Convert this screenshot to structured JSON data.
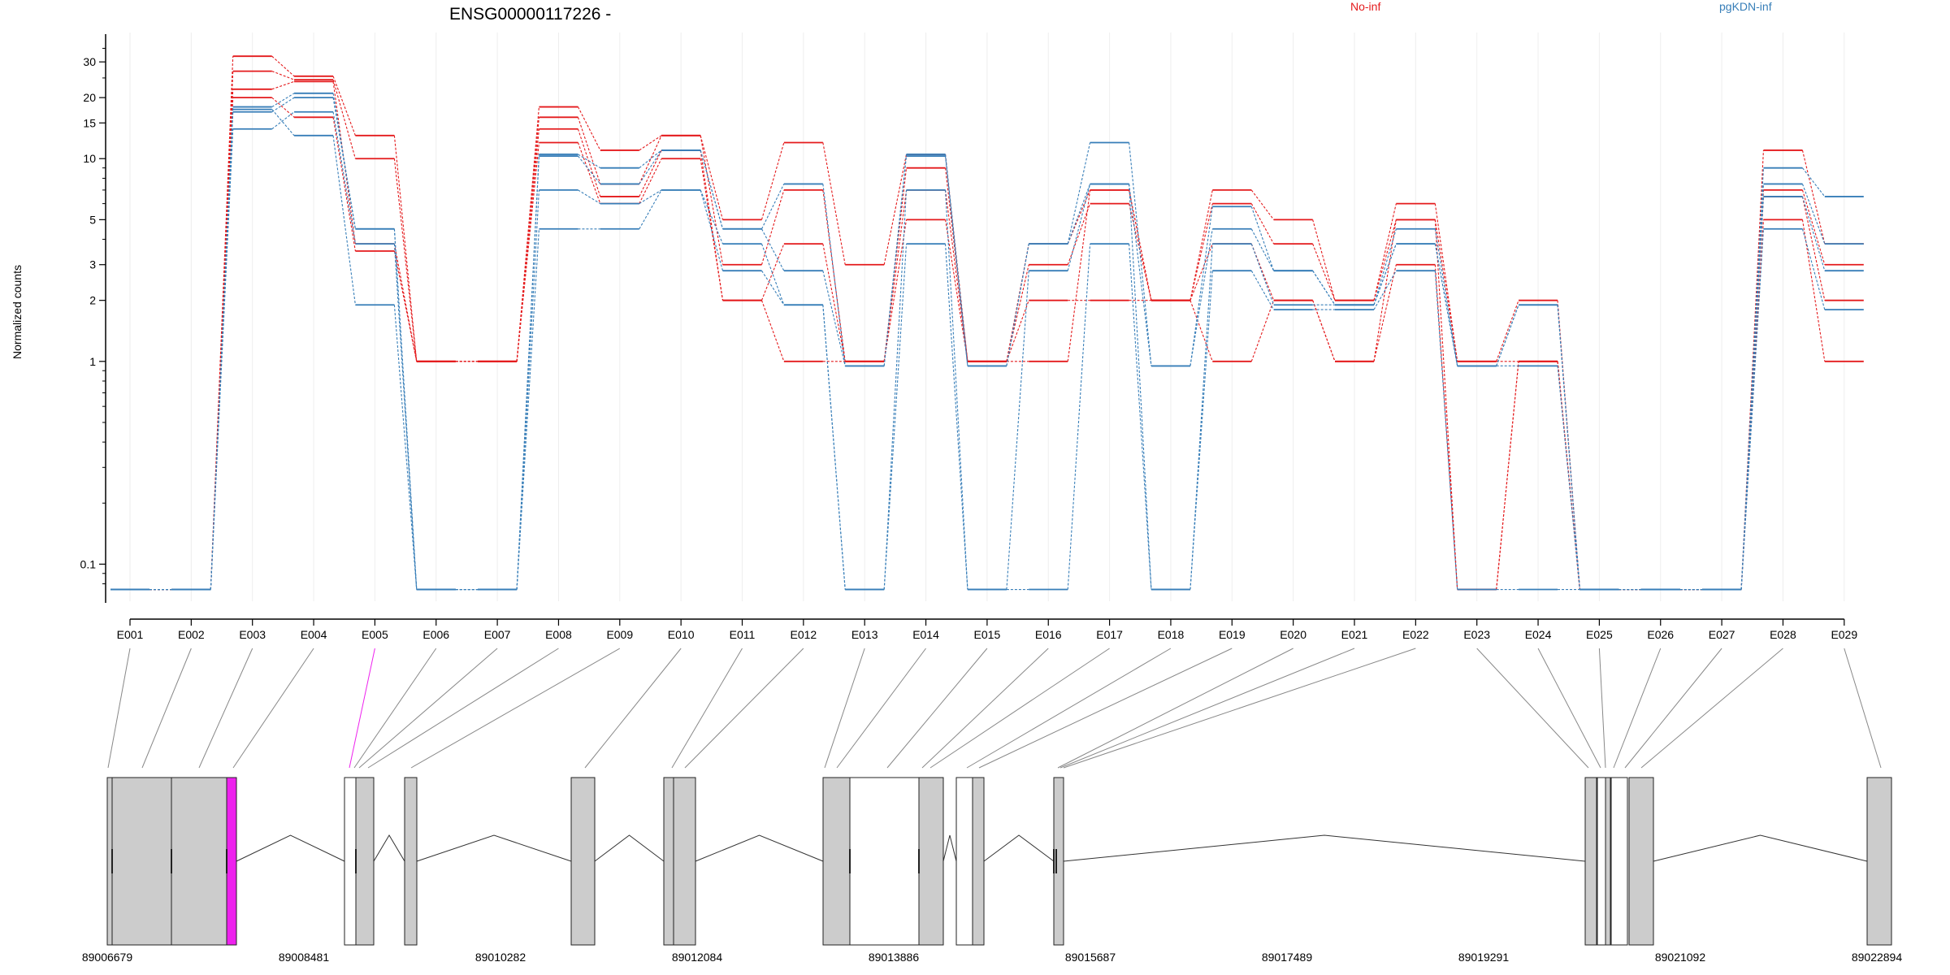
{
  "chart_data": {
    "type": "line",
    "title": "ENSG00000117226 -",
    "ylabel": "Normalized counts",
    "yscale": "log",
    "ylim": [
      0.07,
      40
    ],
    "y_ticks": [
      {
        "value": 0.1,
        "label": "0.1"
      },
      {
        "value": 1,
        "label": "1"
      },
      {
        "value": 2,
        "label": "2"
      },
      {
        "value": 3,
        "label": "3"
      },
      {
        "value": 5,
        "label": "5"
      },
      {
        "value": 10,
        "label": "10"
      },
      {
        "value": 15,
        "label": "15"
      },
      {
        "value": 20,
        "label": "20"
      },
      {
        "value": 30,
        "label": "30"
      }
    ],
    "categories": [
      "E001",
      "E002",
      "E003",
      "E004",
      "E005",
      "E006",
      "E007",
      "E008",
      "E009",
      "E010",
      "E011",
      "E012",
      "E013",
      "E014",
      "E015",
      "E016",
      "E017",
      "E018",
      "E019",
      "E020",
      "E021",
      "E022",
      "E023",
      "E024",
      "E025",
      "E026",
      "E027",
      "E028",
      "E029"
    ],
    "legend": [
      {
        "label": "No-inf",
        "color": "#e41a1c"
      },
      {
        "label": "pgKDN-inf",
        "color": "#377eb8"
      }
    ],
    "series": [
      {
        "group": "No-inf",
        "color": "#e41a1c",
        "values": [
          0.075,
          0.075,
          32,
          25.5,
          13,
          1,
          1,
          18,
          11,
          13,
          5,
          12,
          3,
          10.5,
          1,
          3.8,
          7,
          2,
          7,
          5,
          2,
          6,
          1,
          2,
          0.075,
          0.075,
          0.075,
          11,
          3.8
        ]
      },
      {
        "group": "No-inf",
        "color": "#e41a1c",
        "values": [
          0.075,
          0.075,
          27,
          24.5,
          10,
          1,
          1,
          16,
          7.5,
          13,
          3,
          7,
          1,
          9,
          1,
          3,
          6,
          2,
          6,
          3.8,
          2,
          5,
          1,
          1,
          0.075,
          0.075,
          0.075,
          7,
          3
        ]
      },
      {
        "group": "No-inf",
        "color": "#e41a1c",
        "values": [
          0.075,
          0.075,
          22,
          24,
          3.8,
          1,
          1,
          14,
          6.5,
          11,
          2,
          3.8,
          1,
          7,
          1,
          2,
          2,
          2,
          3.8,
          2,
          1,
          3,
          0.075,
          1,
          0.075,
          0.075,
          0.075,
          6.5,
          2
        ]
      },
      {
        "group": "No-inf",
        "color": "#e41a1c",
        "values": [
          0.075,
          0.075,
          20,
          16,
          3.5,
          1,
          1,
          12,
          6,
          10,
          2,
          1,
          1,
          5,
          1,
          1,
          7,
          2,
          1,
          2,
          1,
          5,
          0.075,
          1,
          0.075,
          0.075,
          0.075,
          5,
          1
        ]
      },
      {
        "group": "pgKDN-inf",
        "color": "#377eb8",
        "values": [
          0.075,
          0.075,
          18,
          21,
          4.5,
          0.075,
          0.075,
          10.5,
          9,
          11,
          4.5,
          7.5,
          0.95,
          10.5,
          0.95,
          3.8,
          12,
          0.95,
          5.8,
          2.8,
          1.9,
          4.5,
          0.95,
          1.9,
          0.075,
          0.075,
          0.075,
          9,
          6.5
        ]
      },
      {
        "group": "pgKDN-inf",
        "color": "#377eb8",
        "values": [
          0.075,
          0.075,
          17,
          20,
          4.5,
          0.075,
          0.075,
          10.3,
          7.5,
          11,
          4.5,
          2.8,
          0.95,
          10.3,
          0.95,
          3.8,
          7.5,
          0.95,
          4.5,
          2.8,
          1.9,
          3.8,
          0.95,
          1.9,
          0.075,
          0.075,
          0.075,
          7.5,
          3.8
        ]
      },
      {
        "group": "pgKDN-inf",
        "color": "#377eb8",
        "values": [
          0.075,
          0.075,
          14,
          17,
          3.8,
          0.075,
          0.075,
          7,
          6,
          7,
          3.8,
          1.9,
          0.075,
          7,
          0.075,
          2.8,
          7.5,
          0.075,
          3.8,
          1.9,
          1.9,
          3.8,
          0.95,
          0.95,
          0.075,
          0.075,
          0.075,
          6.5,
          2.8
        ]
      },
      {
        "group": "pgKDN-inf",
        "color": "#377eb8",
        "values": [
          0.075,
          0.075,
          17.5,
          13,
          1.9,
          0.075,
          0.075,
          4.5,
          4.5,
          7,
          2.8,
          1.9,
          0.075,
          3.8,
          0.075,
          0.075,
          3.8,
          0.075,
          2.8,
          1.8,
          1.8,
          2.8,
          0.075,
          0.075,
          0.075,
          0.075,
          0.075,
          4.5,
          1.8
        ]
      }
    ],
    "genomic_axis": {
      "tick_labels": [
        "89006679",
        "89008481",
        "89010282",
        "89012084",
        "89013886",
        "89015687",
        "89017489",
        "89019291",
        "89021092",
        "89022894"
      ],
      "range": [
        89006679,
        89022894
      ],
      "highlighted_exon": "E005",
      "highlight_color": "#ee22ee",
      "exon_fill": "#cccccc"
    }
  }
}
